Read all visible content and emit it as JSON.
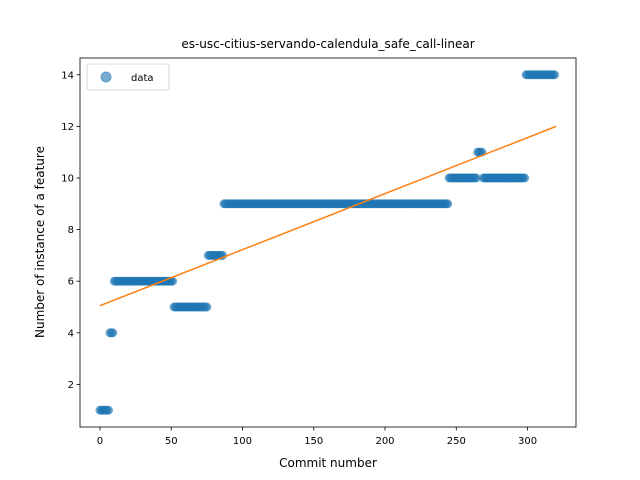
{
  "chart_data": {
    "type": "scatter",
    "title": "es-usc-citius-servando-calendula_safe_call-linear",
    "xlabel": "Commit number",
    "ylabel": "Number of instance of a feature",
    "xlim": [
      -14,
      334
    ],
    "ylim": [
      0.35,
      14.65
    ],
    "xticks": [
      0,
      50,
      100,
      150,
      200,
      250,
      300
    ],
    "yticks": [
      2,
      4,
      6,
      8,
      10,
      12,
      14
    ],
    "grid": false,
    "legend": {
      "placement": "top-left",
      "entries": [
        "data"
      ]
    },
    "colors": {
      "data": "#1f77b4",
      "fit": "#ff7f0e"
    },
    "series": [
      {
        "name": "data",
        "style": "markers",
        "segments": [
          {
            "x_start": 0,
            "x_end": 7,
            "y": 1
          },
          {
            "x_start": 7,
            "x_end": 10,
            "y": 4
          },
          {
            "x_start": 10,
            "x_end": 52,
            "y": 6
          },
          {
            "x_start": 52,
            "x_end": 76,
            "y": 5
          },
          {
            "x_start": 76,
            "x_end": 87,
            "y": 7
          },
          {
            "x_start": 87,
            "x_end": 245,
            "y": 9
          },
          {
            "x_start": 245,
            "x_end": 265,
            "y": 10
          },
          {
            "x_start": 265,
            "x_end": 269,
            "y": 11
          },
          {
            "x_start": 269,
            "x_end": 299,
            "y": 10
          },
          {
            "x_start": 299,
            "x_end": 320,
            "y": 14
          }
        ]
      },
      {
        "style": "line",
        "x": [
          0,
          320
        ],
        "y": [
          5.05,
          12.0
        ]
      }
    ]
  }
}
